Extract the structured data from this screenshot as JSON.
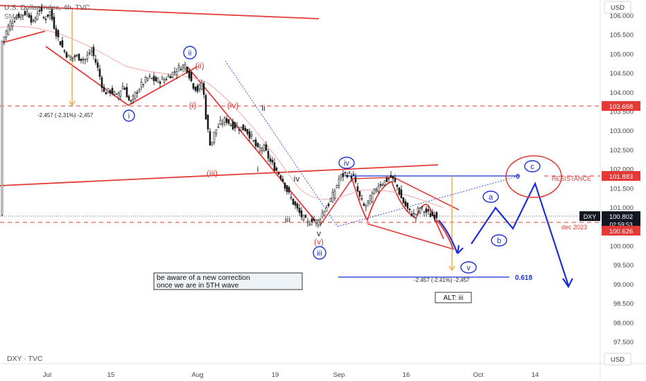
{
  "header": {
    "symbol_title": "U.S. Dollar Index, 4h, TVC",
    "indicator": "SMA"
  },
  "footer": {
    "symbol_source": "DXY · TVC",
    "currency_button": "USD"
  },
  "price_axis": {
    "currency_button": "USD"
  },
  "colors": {
    "red": "#e53935",
    "blue": "#1a2fd6",
    "orange": "#f0a030",
    "candle": "#1b1b1b",
    "grid_text": "#444444",
    "price_tag": "#131722"
  },
  "chart_data": {
    "type": "candlestick",
    "instrument": "DXY",
    "timeframe": "4h",
    "ylim": [
      97.2,
      106.6
    ],
    "y_ticks": [
      "97.500",
      "98.000",
      "98.500",
      "99.000",
      "99.500",
      "100.000",
      "100.500",
      "101.000",
      "101.500",
      "102.000",
      "102.500",
      "103.000",
      "103.500",
      "104.000",
      "104.500",
      "105.000",
      "105.500",
      "106.000"
    ],
    "x_ticks": [
      "Jul",
      "15",
      "Aug",
      "19",
      "Sep",
      "16",
      "Oct",
      "14"
    ],
    "price_path": [
      [
        2,
        105.3
      ],
      [
        14,
        105.8
      ],
      [
        26,
        106.0
      ],
      [
        40,
        106.1
      ],
      [
        48,
        105.8
      ],
      [
        56,
        106.2
      ],
      [
        64,
        105.9
      ],
      [
        72,
        106.1
      ],
      [
        82,
        105.5
      ],
      [
        92,
        105.1
      ],
      [
        100,
        104.9
      ],
      [
        110,
        104.95
      ],
      [
        122,
        104.85
      ],
      [
        132,
        105.1
      ],
      [
        140,
        104.7
      ],
      [
        150,
        104.0
      ],
      [
        160,
        104.05
      ],
      [
        168,
        103.9
      ],
      [
        178,
        104.2
      ],
      [
        188,
        103.7
      ],
      [
        196,
        104.0
      ],
      [
        204,
        104.2
      ],
      [
        214,
        104.4
      ],
      [
        226,
        104.3
      ],
      [
        238,
        104.35
      ],
      [
        248,
        104.5
      ],
      [
        258,
        104.65
      ],
      [
        268,
        104.72
      ],
      [
        278,
        104.2
      ],
      [
        286,
        104.05
      ],
      [
        292,
        104.3
      ],
      [
        298,
        103.2
      ],
      [
        304,
        102.6
      ],
      [
        310,
        103.0
      ],
      [
        318,
        103.2
      ],
      [
        326,
        103.3
      ],
      [
        334,
        103.15
      ],
      [
        344,
        103.1
      ],
      [
        354,
        103.05
      ],
      [
        364,
        102.8
      ],
      [
        372,
        102.5
      ],
      [
        380,
        102.6
      ],
      [
        390,
        102.2
      ],
      [
        398,
        102.0
      ],
      [
        406,
        101.8
      ],
      [
        414,
        101.45
      ],
      [
        424,
        101.1
      ],
      [
        434,
        100.8
      ],
      [
        444,
        100.6
      ],
      [
        450,
        100.7
      ],
      [
        458,
        100.62
      ],
      [
        466,
        100.9
      ],
      [
        474,
        101.1
      ],
      [
        482,
        101.4
      ],
      [
        490,
        101.8
      ],
      [
        500,
        101.9
      ],
      [
        510,
        101.8
      ],
      [
        518,
        101.3
      ],
      [
        526,
        101.0
      ],
      [
        536,
        101.3
      ],
      [
        546,
        101.6
      ],
      [
        556,
        101.7
      ],
      [
        564,
        101.8
      ],
      [
        572,
        101.6
      ],
      [
        580,
        101.2
      ],
      [
        590,
        100.9
      ],
      [
        598,
        100.8
      ],
      [
        606,
        101.0
      ],
      [
        614,
        100.9
      ],
      [
        622,
        100.8
      ],
      [
        630,
        100.8
      ]
    ],
    "price_labels": [
      {
        "label": "DXY",
        "value": 100.802,
        "text": "100.802",
        "countdown": "02:59:53"
      },
      {
        "label": "",
        "value": 103.668,
        "text": "103.668"
      },
      {
        "label": "",
        "value": 101.883,
        "text": "101.883"
      },
      {
        "label": "",
        "value": 100.626,
        "text": "100.626"
      }
    ],
    "horizontal_levels": [
      {
        "value": 103.668,
        "style": "dashed",
        "color": "red"
      },
      {
        "value": 101.883,
        "style": "solid",
        "color": "blue",
        "label": "RESISTANCE"
      },
      {
        "value": 100.626,
        "style": "dashed",
        "color": "red",
        "label": "dec 2023"
      },
      {
        "value": 99.03,
        "style": "solid",
        "color": "blue",
        "label": "0.618"
      },
      {
        "value": 100.802,
        "style": "dotted",
        "color": "black"
      }
    ],
    "wave_labels": [
      {
        "text": "i",
        "style": "blue-circle"
      },
      {
        "text": "ii",
        "style": "blue-circle"
      },
      {
        "text": "(ii)",
        "style": "red"
      },
      {
        "text": "(i)",
        "style": "red"
      },
      {
        "text": "(iv)",
        "style": "red"
      },
      {
        "text": "ii",
        "style": "black"
      },
      {
        "text": "(iii)",
        "style": "red"
      },
      {
        "text": "i",
        "style": "black"
      },
      {
        "text": "iv",
        "style": "black"
      },
      {
        "text": "iii",
        "style": "black"
      },
      {
        "text": "v",
        "style": "black"
      },
      {
        "text": "(v)",
        "style": "red"
      },
      {
        "text": "iii",
        "style": "blue-circle"
      },
      {
        "text": "iv",
        "style": "blue-circle"
      },
      {
        "text": "v",
        "style": "blue-circle"
      },
      {
        "text": "a",
        "style": "blue-circle"
      },
      {
        "text": "b",
        "style": "blue-circle"
      },
      {
        "text": "c",
        "style": "blue-circle"
      },
      {
        "text": "0",
        "style": "blue"
      }
    ],
    "annotations": [
      {
        "text": "-2.457 (-2.31%) -2,457"
      },
      {
        "text": "-2.457 (-2.41%) -2,457"
      },
      {
        "text": "be aware of a new correction"
      },
      {
        "text": "once we are in 5TH wave"
      },
      {
        "text": "ALT: iii"
      },
      {
        "text": "RESISTANCE"
      },
      {
        "text": "dec 2023"
      },
      {
        "text": "0.618"
      }
    ],
    "projection_path": [
      {
        "value": 100.2
      },
      {
        "value": 101.05
      },
      {
        "value": 100.5
      },
      {
        "value": 101.65
      },
      {
        "value": 98.95
      }
    ]
  }
}
